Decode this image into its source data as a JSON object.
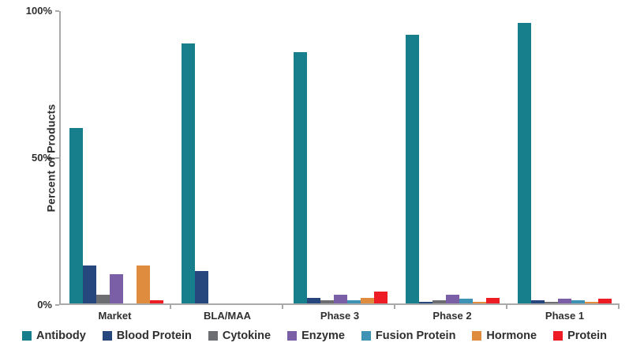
{
  "chart_data": {
    "type": "bar",
    "title": "",
    "xlabel": "",
    "ylabel": "Percent of Products",
    "ylim": [
      0,
      100
    ],
    "grid": false,
    "legend_position": "bottom",
    "y_tick_values": [
      0,
      50,
      100
    ],
    "y_tick_labels": [
      "0%",
      "50%",
      "100%"
    ],
    "categories": [
      "Market",
      "BLA/MAA",
      "Phase 3",
      "Phase 2",
      "Phase 1"
    ],
    "series": [
      {
        "name": "Antibody",
        "color": "#177E8C",
        "values": [
          60,
          89,
          86,
          92,
          96
        ]
      },
      {
        "name": "Blood Protein",
        "color": "#25477D",
        "values": [
          13,
          11,
          2,
          0.5,
          1
        ]
      },
      {
        "name": "Cytokine",
        "color": "#6D6E71",
        "values": [
          3,
          0,
          1,
          1,
          0.5
        ]
      },
      {
        "name": "Enzyme",
        "color": "#7A5FA6",
        "values": [
          10,
          0,
          3,
          3,
          1.5
        ]
      },
      {
        "name": "Fusion Protein",
        "color": "#3E92B3",
        "values": [
          0,
          0,
          1,
          1.5,
          1
        ]
      },
      {
        "name": "Hormone",
        "color": "#E08C3E",
        "values": [
          13,
          0,
          2,
          0.5,
          0.5
        ]
      },
      {
        "name": "Protein",
        "color": "#EE1C25",
        "values": [
          1,
          0,
          4,
          2,
          1.5
        ]
      }
    ]
  }
}
